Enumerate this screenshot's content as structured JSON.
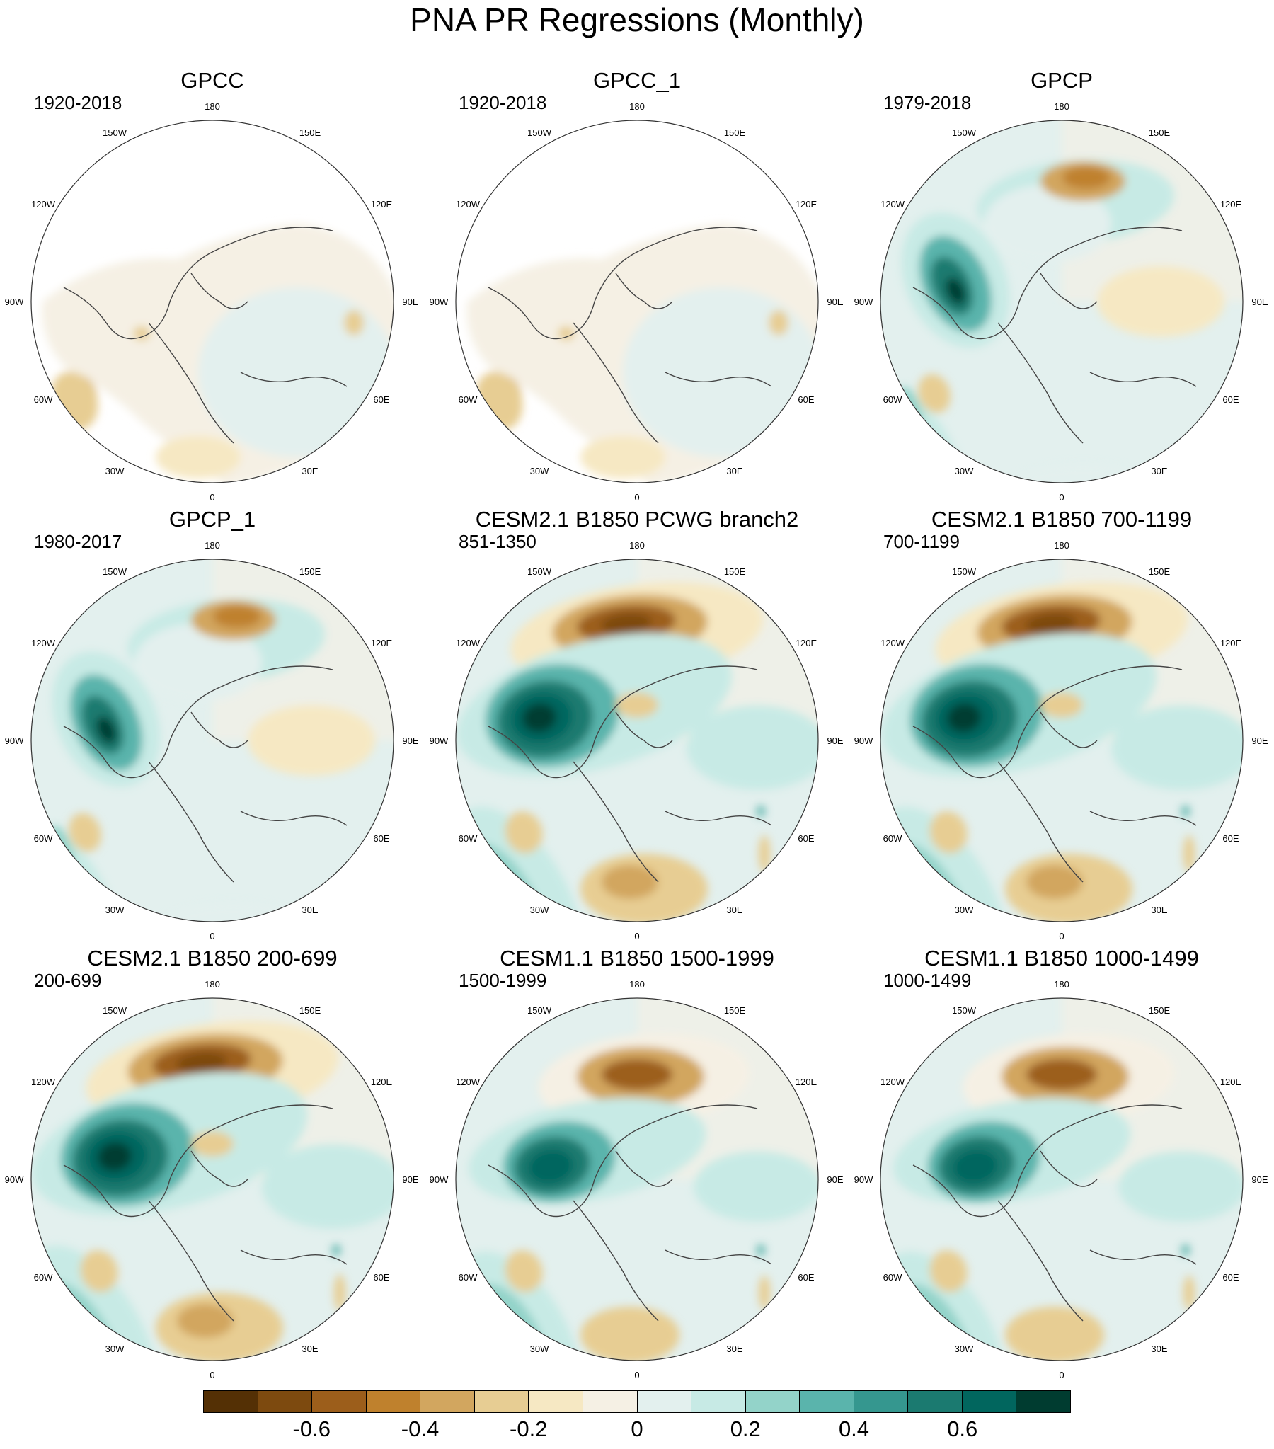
{
  "title": "PNA PR Regressions (Monthly)",
  "longitude_labels": [
    "180",
    "150E",
    "120E",
    "90E",
    "60E",
    "30E",
    "0",
    "30W",
    "60W",
    "90W",
    "120W",
    "150W"
  ],
  "panels": [
    {
      "title": "GPCC",
      "years": "1920-2018",
      "pattern": "gpcc"
    },
    {
      "title": "GPCC_1",
      "years": "1920-2018",
      "pattern": "gpcc"
    },
    {
      "title": "GPCP",
      "years": "1979-2018",
      "pattern": "obs"
    },
    {
      "title": "GPCP_1",
      "years": "1980-2017",
      "pattern": "obs"
    },
    {
      "title": "CESM2.1 B1850 PCWG branch2",
      "years": "851-1350",
      "pattern": "model-strong"
    },
    {
      "title": "CESM2.1 B1850 700-1199",
      "years": "700-1199",
      "pattern": "model-strong"
    },
    {
      "title": "CESM2.1 B1850 200-699",
      "years": "200-699",
      "pattern": "model-strong"
    },
    {
      "title": "CESM1.1 B1850 1500-1999",
      "years": "1500-1999",
      "pattern": "model"
    },
    {
      "title": "CESM1.1 B1850 1000-1499",
      "years": "1000-1499",
      "pattern": "model"
    }
  ],
  "colorbar": {
    "colors": [
      "#543005",
      "#7d4a0f",
      "#9c5e1b",
      "#bf812d",
      "#d2a65f",
      "#e7cd93",
      "#f6e8c3",
      "#f5f0e4",
      "#e3f0ee",
      "#c7eae5",
      "#93d3c9",
      "#5ab4ac",
      "#35978f",
      "#1b7a70",
      "#01665e",
      "#003c30"
    ],
    "tick_labels": [
      "-0.6",
      "-0.4",
      "-0.2",
      "0",
      "0.2",
      "0.4",
      "0.6"
    ],
    "tick_values": [
      -0.6,
      -0.4,
      -0.2,
      0,
      0.2,
      0.4,
      0.6
    ],
    "min": -0.8,
    "max": 0.8
  }
}
